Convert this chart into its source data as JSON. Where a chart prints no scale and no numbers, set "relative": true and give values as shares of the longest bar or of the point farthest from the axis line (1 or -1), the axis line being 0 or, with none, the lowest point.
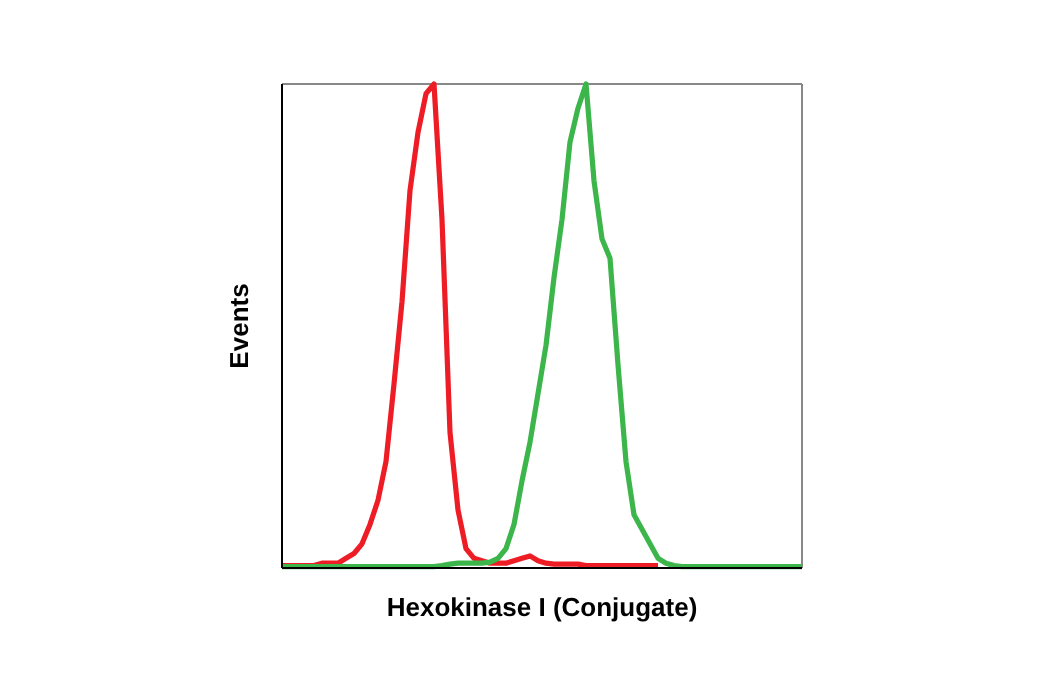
{
  "chart_data": {
    "type": "line",
    "relative": true,
    "xlabel": "Hexokinase I (Conjugate)",
    "ylabel": "Events",
    "categories": [
      null,
      null,
      null,
      null,
      null,
      null,
      null,
      null,
      null,
      null,
      null,
      null,
      null,
      null,
      null,
      null,
      null,
      null,
      null,
      null,
      null,
      null,
      null,
      null,
      null,
      null,
      null,
      null,
      null,
      null,
      null,
      null,
      null,
      null,
      null,
      null,
      null,
      null,
      null,
      null,
      null,
      null,
      null,
      null,
      null,
      null,
      null,
      null,
      null,
      null,
      null,
      null,
      null,
      null,
      null,
      null,
      null,
      null,
      null,
      null,
      null,
      null,
      null,
      null,
      null,
      null
    ],
    "series": [
      {
        "color": "#ee1c25",
        "values": [
          0.005,
          0.005,
          0.005,
          0.005,
          0.005,
          0.01,
          0.01,
          0.01,
          0.02,
          0.03,
          0.05,
          0.09,
          0.14,
          0.22,
          0.38,
          0.55,
          0.78,
          0.9,
          0.98,
          1,
          0.72,
          0.28,
          0.12,
          0.04,
          0.02,
          0.015,
          0.01,
          0.01,
          0.01,
          0.015,
          0.02,
          0.025,
          0.015,
          0.01,
          0.008,
          0.008,
          0.008,
          0.008,
          0.005,
          0.005,
          0.005,
          0.005,
          0.005,
          0.005,
          0.005,
          0.005,
          0.005,
          0.005,
          null,
          null,
          null,
          null,
          null,
          null,
          null,
          null,
          null,
          null,
          null,
          null,
          null,
          null,
          null,
          null,
          null,
          null
        ]
      },
      {
        "color": "#3cb54a",
        "values": [
          0.003,
          0.003,
          0.003,
          0.003,
          0.003,
          0.003,
          0.003,
          0.003,
          0.003,
          0.003,
          0.003,
          0.003,
          0.003,
          0.003,
          0.003,
          0.003,
          0.003,
          0.003,
          0.003,
          0.003,
          0.005,
          0.008,
          0.01,
          0.01,
          0.01,
          0.01,
          0.012,
          0.02,
          0.04,
          0.09,
          0.18,
          0.26,
          0.36,
          0.46,
          0.6,
          0.72,
          0.88,
          0.95,
          1,
          0.8,
          0.68,
          0.64,
          0.42,
          0.22,
          0.11,
          0.08,
          0.05,
          0.02,
          0.01,
          0.005,
          0.003,
          0.003,
          0.003,
          0.003,
          0.003,
          0.003,
          0.003,
          0.003,
          0.003,
          0.003,
          0.003,
          0.003,
          0.003,
          0.003,
          0.003,
          0.003
        ]
      }
    ],
    "line_style": "solid"
  }
}
